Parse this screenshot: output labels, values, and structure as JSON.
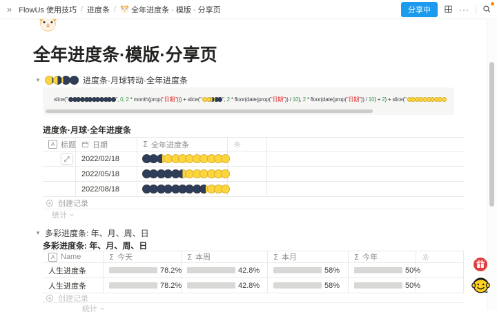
{
  "topbar": {
    "collapse_icon": "»",
    "separator": "/",
    "breadcrumb": [
      {
        "label": "FlowUs 使用技巧"
      },
      {
        "label": "进度条"
      },
      {
        "label": "全年进度条 · 模版 · 分享页",
        "icon": "hamster-emoji"
      }
    ],
    "share_button": "分享中",
    "more_label": "···"
  },
  "page": {
    "icon": "hamster-emoji",
    "title": "全年进度条·模版·分享页"
  },
  "moon_section": {
    "toggle_label": "进度条·月球转动·全年进度条",
    "toggle_icon_moons": [
      0.82,
      0.5,
      0.18,
      0
    ],
    "formula": [
      [
        "c",
        "slice(\""
      ],
      [
        "m",
        [
          0,
          0,
          0,
          0,
          0,
          0,
          0,
          0,
          0,
          0,
          0,
          0
        ]
      ],
      [
        "c",
        "\", "
      ],
      [
        "n",
        "0"
      ],
      [
        "c",
        ", "
      ],
      [
        "n",
        "2"
      ],
      [
        "c",
        " * month(prop("
      ],
      [
        "s",
        "\"日期\""
      ],
      [
        "c",
        "))) + slice(\""
      ],
      [
        "m",
        [
          1,
          0.72,
          0.5,
          0.25,
          0
        ]
      ],
      [
        "c",
        "\", "
      ],
      [
        "n",
        "2"
      ],
      [
        "c",
        " * floor(date(prop("
      ],
      [
        "s",
        "\"日期\""
      ],
      [
        "c",
        ")) / "
      ],
      [
        "n",
        "10"
      ],
      [
        "c",
        "), "
      ],
      [
        "n",
        "2"
      ],
      [
        "c",
        " * floor(date(prop("
      ],
      [
        "s",
        "\"日期\""
      ],
      [
        "c",
        ")) / "
      ],
      [
        "n",
        "10"
      ],
      [
        "c",
        ") + "
      ],
      [
        "n",
        "2"
      ],
      [
        "c",
        ") + slice(\""
      ],
      [
        "m",
        [
          1,
          1,
          1,
          1,
          1,
          1,
          1,
          1,
          1,
          1
        ]
      ]
    ],
    "table_title": "进度条·月球·全年进度条",
    "columns": [
      {
        "icon": "text-field",
        "label": "标题"
      },
      {
        "icon": "date-field",
        "label": "日期"
      },
      {
        "icon": "formula-field",
        "label": "全年进度条"
      },
      {
        "icon": "gear",
        "label": ""
      }
    ],
    "rows": [
      {
        "date": "2022/02/18",
        "moons": [
          1,
          1,
          0.6,
          0,
          0,
          0,
          0,
          0,
          0,
          0,
          0,
          0
        ]
      },
      {
        "date": "2022/05/18",
        "moons": [
          1,
          1,
          1,
          1,
          1,
          0.5,
          0,
          0,
          0,
          0,
          0,
          0
        ]
      },
      {
        "date": "2022/08/18",
        "moons": [
          1,
          1,
          1,
          1,
          1,
          1,
          1,
          1,
          0.7,
          0,
          0,
          0
        ]
      }
    ],
    "add_record_label": "创建记录",
    "stats_label": "统计"
  },
  "colorful_section": {
    "toggle_label": "多彩进度条: 年、月、周、日",
    "table_title": "多彩进度条: 年、月、周、日",
    "columns": [
      {
        "icon": "text-field",
        "label": "Name"
      },
      {
        "icon": "formula-field",
        "label": "今天"
      },
      {
        "icon": "formula-field",
        "label": "本周"
      },
      {
        "icon": "formula-field",
        "label": "本月"
      },
      {
        "icon": "formula-field",
        "label": "今年"
      },
      {
        "icon": "gear",
        "label": ""
      }
    ],
    "rows": [
      {
        "name": "人生进度条",
        "bars": [
          {
            "label": "78.2%",
            "pct": 78.2
          },
          {
            "label": "42.8%",
            "pct": 42.8
          },
          {
            "label": "58%",
            "pct": 58
          },
          {
            "label": "50%",
            "pct": 50
          }
        ]
      },
      {
        "name": "人生进度条",
        "bars": [
          {
            "label": "78.2%",
            "pct": 78.2
          },
          {
            "label": "42.8%",
            "pct": 42.8
          },
          {
            "label": "58%",
            "pct": 58
          },
          {
            "label": "50%",
            "pct": 50
          }
        ]
      }
    ],
    "add_record_label": "创建记录",
    "stats_label": "统计"
  },
  "colors": {
    "accent_blue": "#1b9aee",
    "moon_dark": "#2e3d59",
    "moon_yellow": "#ffd53e",
    "bar_fill": "#ffc400",
    "bar_track": "#d8d8d6",
    "formula_number": "#2f9e44",
    "formula_string": "#e03131",
    "notification_dot": "#ff8a00"
  }
}
